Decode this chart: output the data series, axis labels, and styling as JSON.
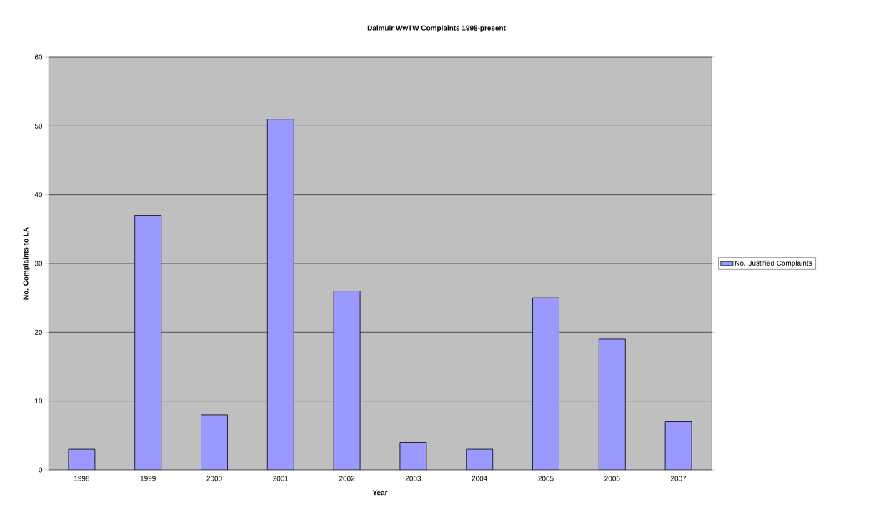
{
  "chart_data": {
    "type": "bar",
    "title": "Dalmuir WwTW Complaints 1998-present",
    "xlabel": "Year",
    "ylabel": "No. Complaints to LA",
    "categories": [
      "1998",
      "1999",
      "2000",
      "2001",
      "2002",
      "2003",
      "2004",
      "2005",
      "2006",
      "2007"
    ],
    "series": [
      {
        "name": "No. Justified Complaints",
        "color": "#9999ff",
        "values": [
          3,
          37,
          8,
          51,
          26,
          4,
          3,
          25,
          19,
          7
        ]
      }
    ],
    "ylim": [
      0,
      60
    ],
    "yticks": [
      0,
      10,
      20,
      30,
      40,
      50,
      60
    ],
    "grid": "y",
    "legend": "right"
  }
}
